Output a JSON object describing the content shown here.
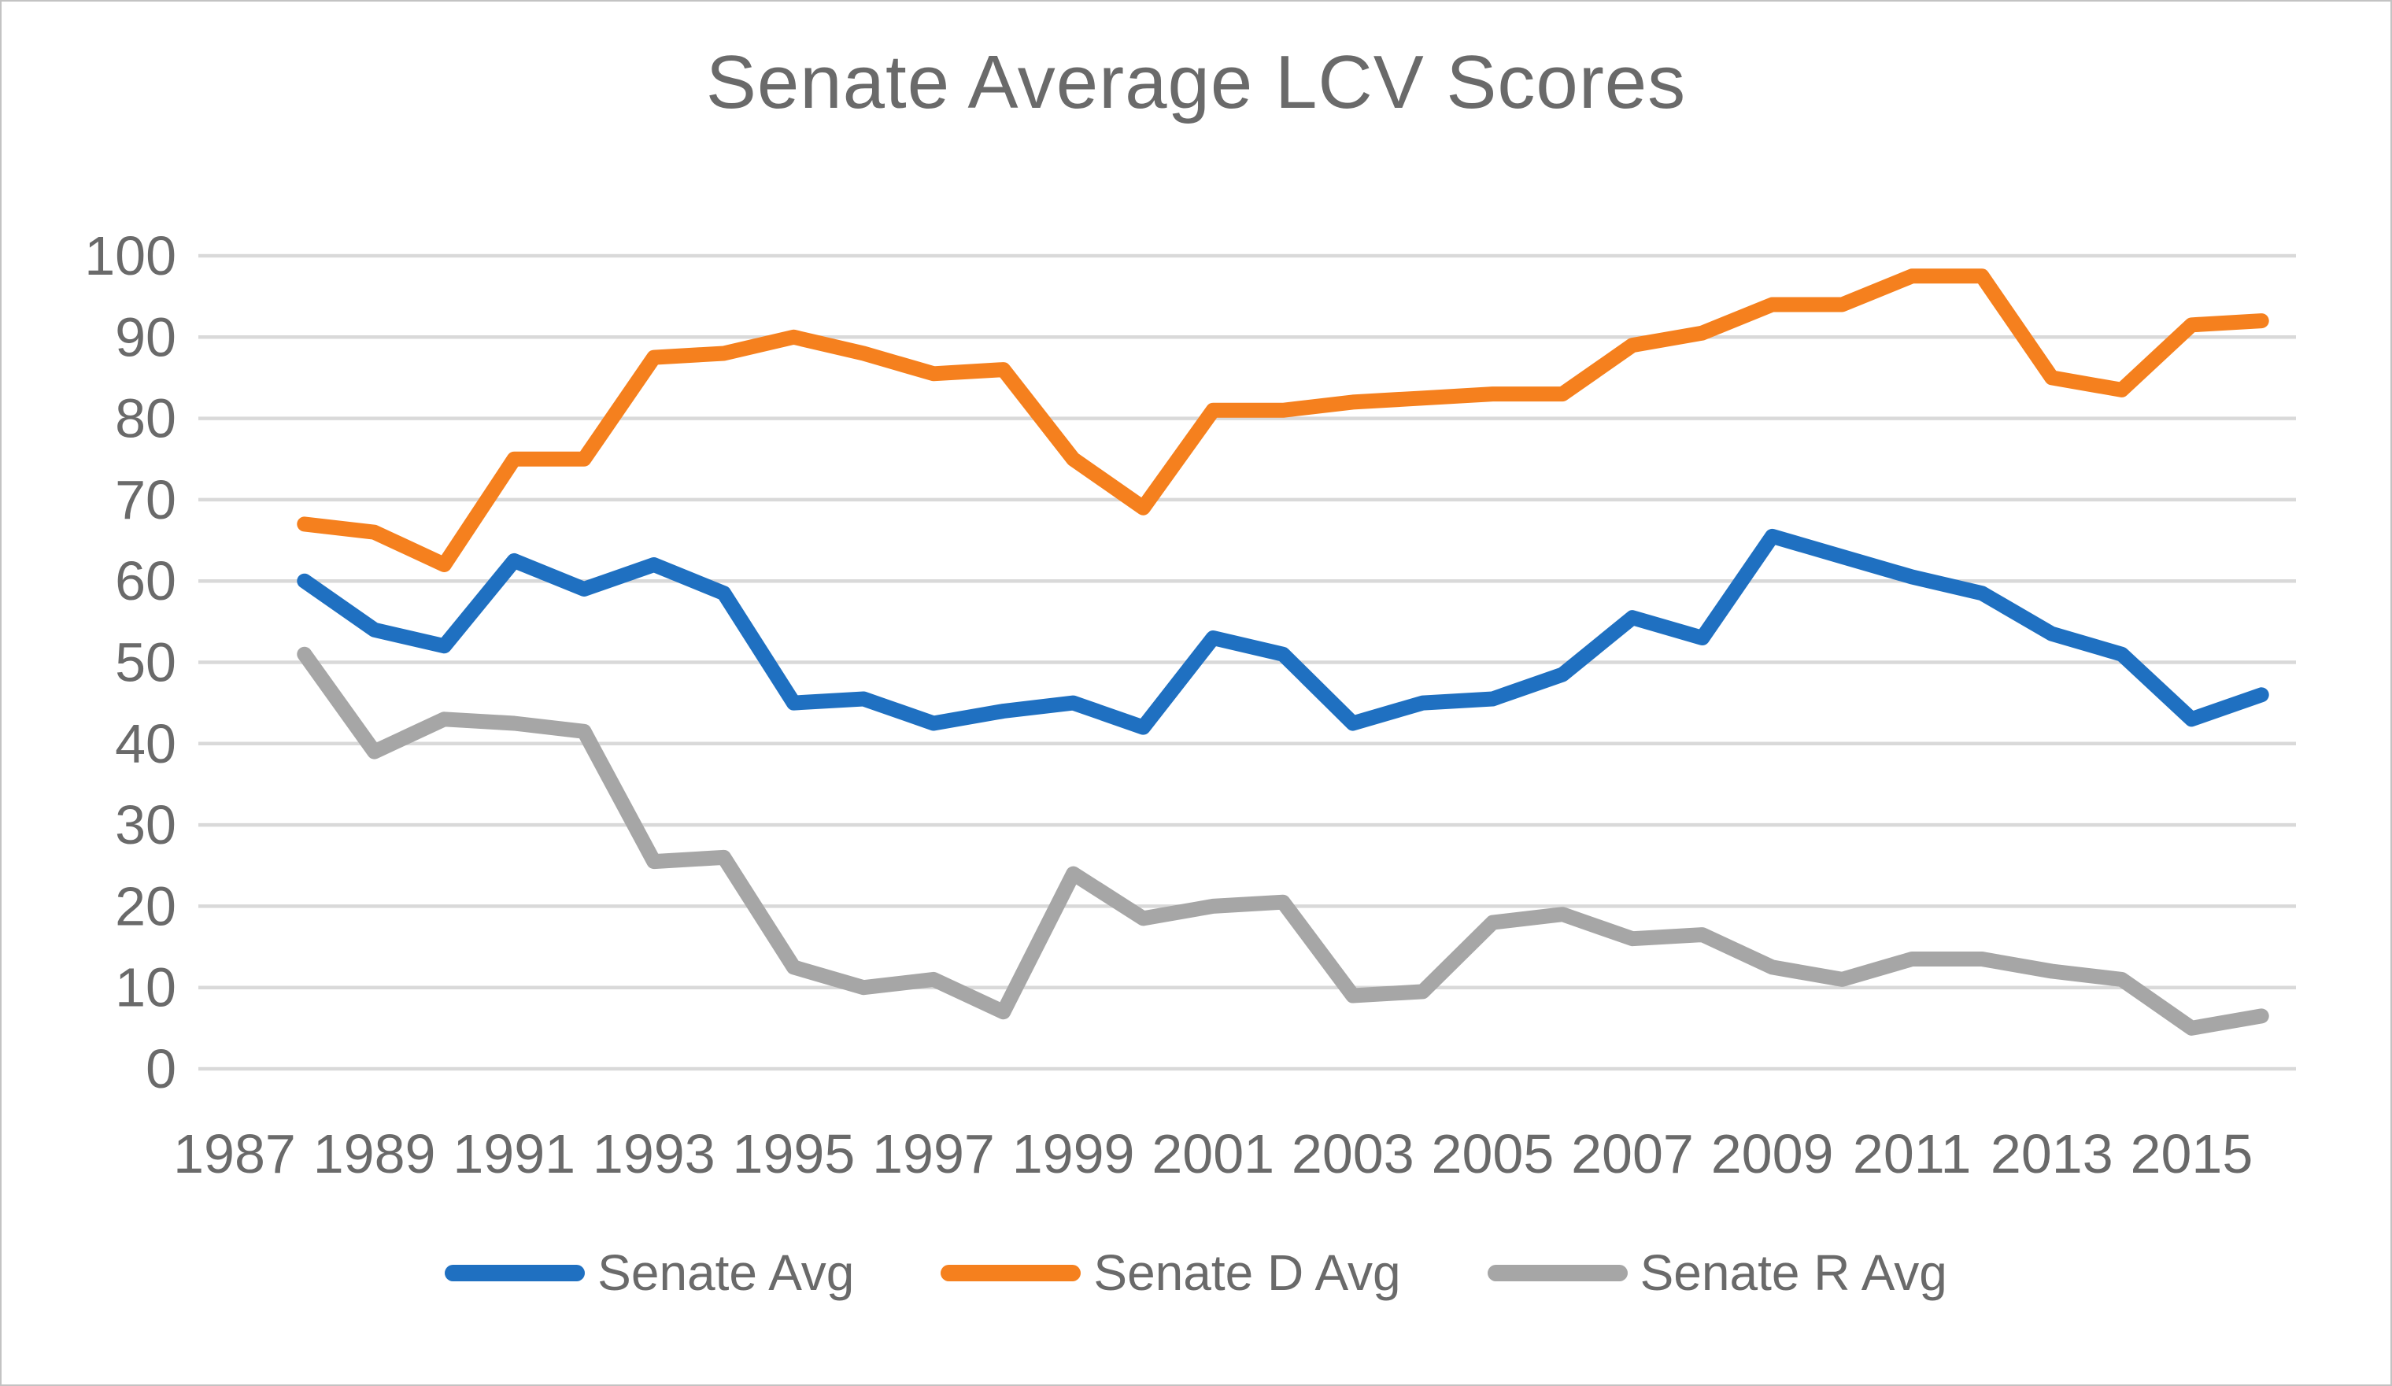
{
  "window": {
    "background": "#ffffff",
    "border_color": "#c3c3c3",
    "text_color": "#6a6a6a",
    "gridline_color": "#d9d9d9"
  },
  "chart_data": {
    "type": "line",
    "title": "Senate Average LCV Scores",
    "xlabel": "",
    "ylabel": "",
    "ylim": [
      0,
      100
    ],
    "y_tick_step": 10,
    "grid": "horizontal",
    "legend_position": "bottom",
    "categories": [
      1987,
      1988,
      1989,
      1990,
      1991,
      1992,
      1993,
      1994,
      1995,
      1996,
      1997,
      1998,
      1999,
      2000,
      2001,
      2002,
      2003,
      2004,
      2005,
      2006,
      2007,
      2008,
      2009,
      2010,
      2011,
      2012,
      2013,
      2014,
      2015,
      2016
    ],
    "x_tick_labels": [
      "1987",
      "1989",
      "1991",
      "1993",
      "1995",
      "1997",
      "1999",
      "2001",
      "2003",
      "2005",
      "2007",
      "2009",
      "2011",
      "2013",
      "2015"
    ],
    "y_tick_labels": [
      "0",
      "10",
      "20",
      "30",
      "40",
      "50",
      "60",
      "70",
      "80",
      "90",
      "100"
    ],
    "series": [
      {
        "name": "Senate Avg",
        "color": "#1F70C1",
        "values": [
          null,
          60,
          54,
          52,
          62.5,
          59,
          62,
          58.5,
          45,
          45.5,
          42.5,
          44,
          45,
          42,
          53,
          51,
          42.5,
          45,
          45.5,
          48.5,
          55.5,
          53,
          65.5,
          63,
          60.5,
          58.5,
          53.5,
          51,
          43,
          46
        ]
      },
      {
        "name": "Senate D Avg",
        "color": "#F5801E",
        "values": [
          null,
          67,
          66,
          62,
          75,
          75,
          87.5,
          88,
          90,
          88,
          85.5,
          86,
          75,
          69,
          81,
          81,
          82,
          82.5,
          83,
          83,
          89,
          90.5,
          94,
          94,
          97.5,
          97.5,
          85,
          83.5,
          91.5,
          92
        ]
      },
      {
        "name": "Senate R Avg",
        "color": "#A6A6A6",
        "values": [
          null,
          51,
          39,
          43,
          42.5,
          41.5,
          25.5,
          26,
          12.5,
          10,
          11,
          7,
          24,
          18.5,
          20,
          20.5,
          9,
          9.5,
          18,
          19,
          16,
          16.5,
          12.5,
          11,
          13.5,
          13.5,
          12,
          11,
          5,
          6.5
        ]
      }
    ]
  }
}
